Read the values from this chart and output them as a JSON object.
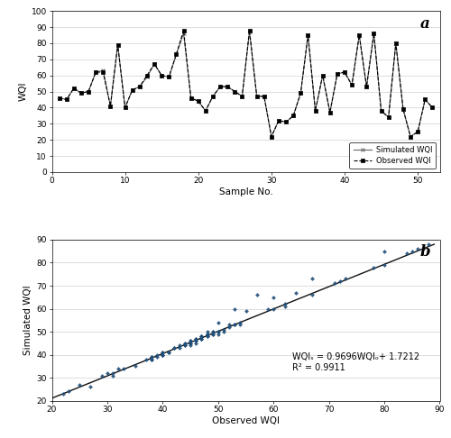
{
  "observed_wqi": [
    46,
    45,
    52,
    49,
    50,
    62,
    62,
    41,
    79,
    40,
    51,
    53,
    60,
    67,
    60,
    59,
    73,
    88,
    46,
    44,
    38,
    47,
    53,
    53,
    50,
    47,
    88,
    47,
    47,
    22,
    32,
    31,
    35,
    49,
    85,
    38,
    60,
    37,
    61,
    62,
    54,
    85,
    53,
    86,
    38,
    34,
    80,
    39,
    22,
    25,
    45,
    40
  ],
  "simulated_wqi": [
    46,
    45,
    52,
    49,
    50,
    62,
    63,
    41,
    79,
    40,
    51,
    53,
    59,
    67,
    60,
    59,
    73,
    86,
    46,
    44,
    38,
    47,
    53,
    53,
    50,
    47,
    87,
    47,
    47,
    22,
    32,
    31,
    35,
    49,
    85,
    38,
    60,
    37,
    61,
    62,
    54,
    85,
    53,
    86,
    38,
    34,
    80,
    39,
    22,
    25,
    45,
    40
  ],
  "scatter_obs": [
    22,
    23,
    25,
    27,
    29,
    30,
    31,
    31,
    32,
    33,
    35,
    37,
    38,
    38,
    38,
    38,
    39,
    39,
    40,
    40,
    40,
    40,
    40,
    41,
    41,
    42,
    42,
    43,
    43,
    44,
    44,
    44,
    44,
    45,
    45,
    45,
    45,
    45,
    46,
    46,
    46,
    46,
    46,
    47,
    47,
    47,
    47,
    47,
    47,
    48,
    48,
    48,
    48,
    48,
    48,
    49,
    49,
    49,
    49,
    50,
    50,
    50,
    50,
    51,
    51,
    52,
    52,
    53,
    53,
    53,
    54,
    54,
    55,
    57,
    59,
    60,
    60,
    62,
    62,
    64,
    67,
    67,
    71,
    72,
    73,
    78,
    80,
    80,
    84,
    85,
    86,
    87,
    88
  ],
  "scatter_sim": [
    23,
    24,
    27,
    26,
    31,
    32,
    31,
    32,
    34,
    34,
    35,
    38,
    38,
    38,
    39,
    39,
    39,
    40,
    40,
    40,
    40,
    41,
    41,
    41,
    41,
    43,
    43,
    43,
    44,
    44,
    44,
    45,
    45,
    44,
    45,
    45,
    46,
    46,
    45,
    46,
    46,
    47,
    47,
    47,
    47,
    47,
    48,
    48,
    48,
    48,
    48,
    49,
    49,
    49,
    50,
    49,
    49,
    50,
    50,
    49,
    50,
    50,
    54,
    50,
    51,
    52,
    53,
    53,
    53,
    60,
    53,
    54,
    59,
    66,
    60,
    60,
    65,
    61,
    62,
    67,
    66,
    73,
    71,
    72,
    73,
    78,
    79,
    85,
    84,
    85,
    86,
    86,
    88
  ],
  "equation_line1": "WQIₛ = 0.9696WQIₒ+ 1.7212",
  "equation_line2": "R² = 0.9911",
  "subplot_a_label": "a",
  "subplot_b_label": "b",
  "ylabel_a": "WQI",
  "xlabel_a": "Sample No.",
  "xlabel_b": "Observed WQI",
  "ylabel_b": "Simulated WQI",
  "ylim_a": [
    0,
    100
  ],
  "xlim_a": [
    0,
    53
  ],
  "ylim_b": [
    20,
    90
  ],
  "xlim_b": [
    20,
    89
  ],
  "xticks_a": [
    0,
    10,
    20,
    30,
    40,
    50
  ],
  "yticks_a": [
    0,
    10,
    20,
    30,
    40,
    50,
    60,
    70,
    80,
    90,
    100
  ],
  "xticks_b": [
    20,
    30,
    40,
    50,
    60,
    70,
    80,
    90
  ],
  "yticks_b": [
    20,
    30,
    40,
    50,
    60,
    70,
    80,
    90
  ],
  "bg_color": "#ffffff",
  "grid_color": "#d0d0d0",
  "scatter_color": "#1f4e79",
  "line_color": "#111111"
}
